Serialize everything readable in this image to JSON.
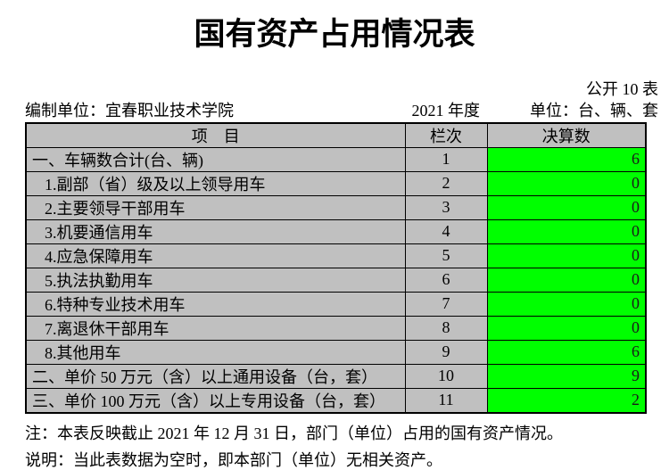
{
  "document": {
    "title": "国有资产占用情况表",
    "public_table_label": "公开 10 表",
    "prepared_by_label": "编制单位：",
    "prepared_by": "宜春职业技术学院",
    "fiscal_year": "2021 年度",
    "unit_label": "单位：台、辆、套"
  },
  "table": {
    "headers": {
      "item": "项　目",
      "column": "栏次",
      "value": "决算数"
    },
    "rows": [
      {
        "item": "一、车辆数合计(台、辆)",
        "col": "1",
        "value": "6"
      },
      {
        "item": "1.副部（省）级及以上领导用车",
        "col": "2",
        "value": "0"
      },
      {
        "item": "2.主要领导干部用车",
        "col": "3",
        "value": "0"
      },
      {
        "item": "3.机要通信用车",
        "col": "4",
        "value": "0"
      },
      {
        "item": "4.应急保障用车",
        "col": "5",
        "value": "0"
      },
      {
        "item": "5.执法执勤用车",
        "col": "6",
        "value": "0"
      },
      {
        "item": "6.特种专业技术用车",
        "col": "7",
        "value": "0"
      },
      {
        "item": "7.离退休干部用车",
        "col": "8",
        "value": "0"
      },
      {
        "item": "8.其他用车",
        "col": "9",
        "value": "6"
      },
      {
        "item": "二、单价 50 万元（含）以上通用设备（台，套）",
        "col": "10",
        "value": "9"
      },
      {
        "item": "三、单价 100 万元（含）以上专用设备（台，套）",
        "col": "11",
        "value": "2"
      }
    ]
  },
  "notes": [
    "注：本表反映截止 2021 年 12 月 31 日，部门（单位）占用的国有资产情况。",
    "说明：当此表数据为空时，即本部门（单位）无相关资产。"
  ],
  "colors": {
    "header_bg": "#c0c0c0",
    "value_bg": "#00ff00",
    "border": "#000000"
  }
}
